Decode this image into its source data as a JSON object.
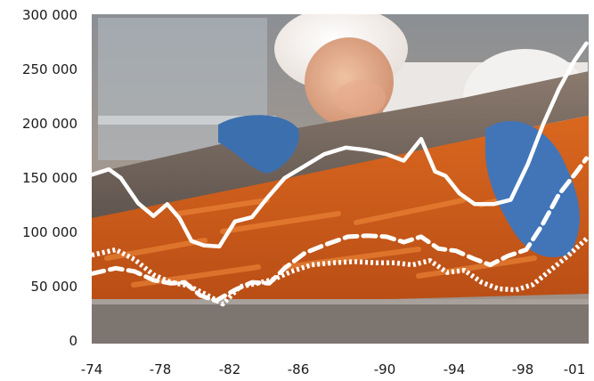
{
  "chart_data": {
    "type": "line",
    "title": "",
    "xlabel": "",
    "ylabel": "",
    "x_ticks": [
      "-74",
      "-78",
      "-82",
      "-86",
      "-90",
      "-94",
      "-98",
      "-01"
    ],
    "x_tick_years": [
      1974,
      1978,
      1982,
      1986,
      1990,
      1994,
      1998,
      2001
    ],
    "y_ticks": [
      "0",
      "50 000",
      "100 000",
      "150 000",
      "200 000",
      "250 000",
      "300 000"
    ],
    "y_tick_values": [
      0,
      50000,
      100000,
      150000,
      200000,
      250000,
      300000
    ],
    "xlim": [
      1974,
      2001.7
    ],
    "ylim": [
      0,
      300000
    ],
    "background": "photo of a worker in a white cap and blue gloves sorting carrots on a conveyor belt",
    "series": [
      {
        "style": "solid",
        "color": "#ffffff",
        "x": [
          1974,
          1975,
          1975.7,
          1976.7,
          1977.6,
          1978.4,
          1979.1,
          1979.8,
          1980.5,
          1981.4,
          1982.3,
          1983.3,
          1984.2,
          1985.2,
          1986.2,
          1987.2,
          1988.2,
          1989.1,
          1990.1,
          1991.1,
          1992.1,
          1992.9,
          1993.5,
          1994.3,
          1995.2,
          1996.3,
          1997.3,
          1998.3,
          1999.2,
          2000.1,
          2001,
          2001.7
        ],
        "y": [
          153000,
          158000,
          150000,
          127000,
          115000,
          126000,
          113000,
          92000,
          88000,
          87000,
          110000,
          114000,
          132000,
          150000,
          160000,
          172000,
          178000,
          176000,
          172000,
          166000,
          186000,
          156000,
          152000,
          136000,
          126000,
          126000,
          130000,
          163000,
          200000,
          232000,
          258000,
          274000
        ]
      },
      {
        "style": "dashed",
        "color": "#ffffff",
        "x": [
          1974,
          1975.4,
          1976.5,
          1977.6,
          1978.6,
          1979.4,
          1980.3,
          1981.2,
          1982.3,
          1983.3,
          1984.3,
          1985.2,
          1986.3,
          1987.3,
          1988.3,
          1989.2,
          1990.1,
          1991.1,
          1992.1,
          1993.1,
          1994.1,
          1995.1,
          1996.1,
          1997.1,
          1998.2,
          1999.1,
          2000.1,
          2001.1,
          2001.7
        ],
        "y": [
          62000,
          67000,
          64000,
          56000,
          53000,
          54000,
          42000,
          37000,
          47000,
          54000,
          53000,
          67000,
          81000,
          89000,
          96000,
          97000,
          96000,
          91000,
          96000,
          85000,
          83000,
          76000,
          70000,
          78000,
          84000,
          106000,
          135000,
          155000,
          168000
        ]
      },
      {
        "style": "dotted",
        "color": "#ffffff",
        "x": [
          1974,
          1975.4,
          1976.5,
          1977.6,
          1978.6,
          1979.6,
          1980.6,
          1981.6,
          1982.6,
          1983.6,
          1984.6,
          1985.6,
          1986.6,
          1987.6,
          1988.6,
          1989.6,
          1990.6,
          1991.6,
          1992.6,
          1993.6,
          1994.6,
          1995.6,
          1996.6,
          1997.6,
          1998.6,
          1999.6,
          2000.6,
          2001.7
        ],
        "y": [
          79000,
          84000,
          75000,
          61000,
          54000,
          51000,
          43000,
          34000,
          50000,
          53000,
          57000,
          64000,
          70000,
          72000,
          73000,
          72000,
          72000,
          70000,
          74000,
          63000,
          65000,
          54000,
          48000,
          47000,
          52000,
          65000,
          78000,
          94000
        ]
      }
    ]
  }
}
